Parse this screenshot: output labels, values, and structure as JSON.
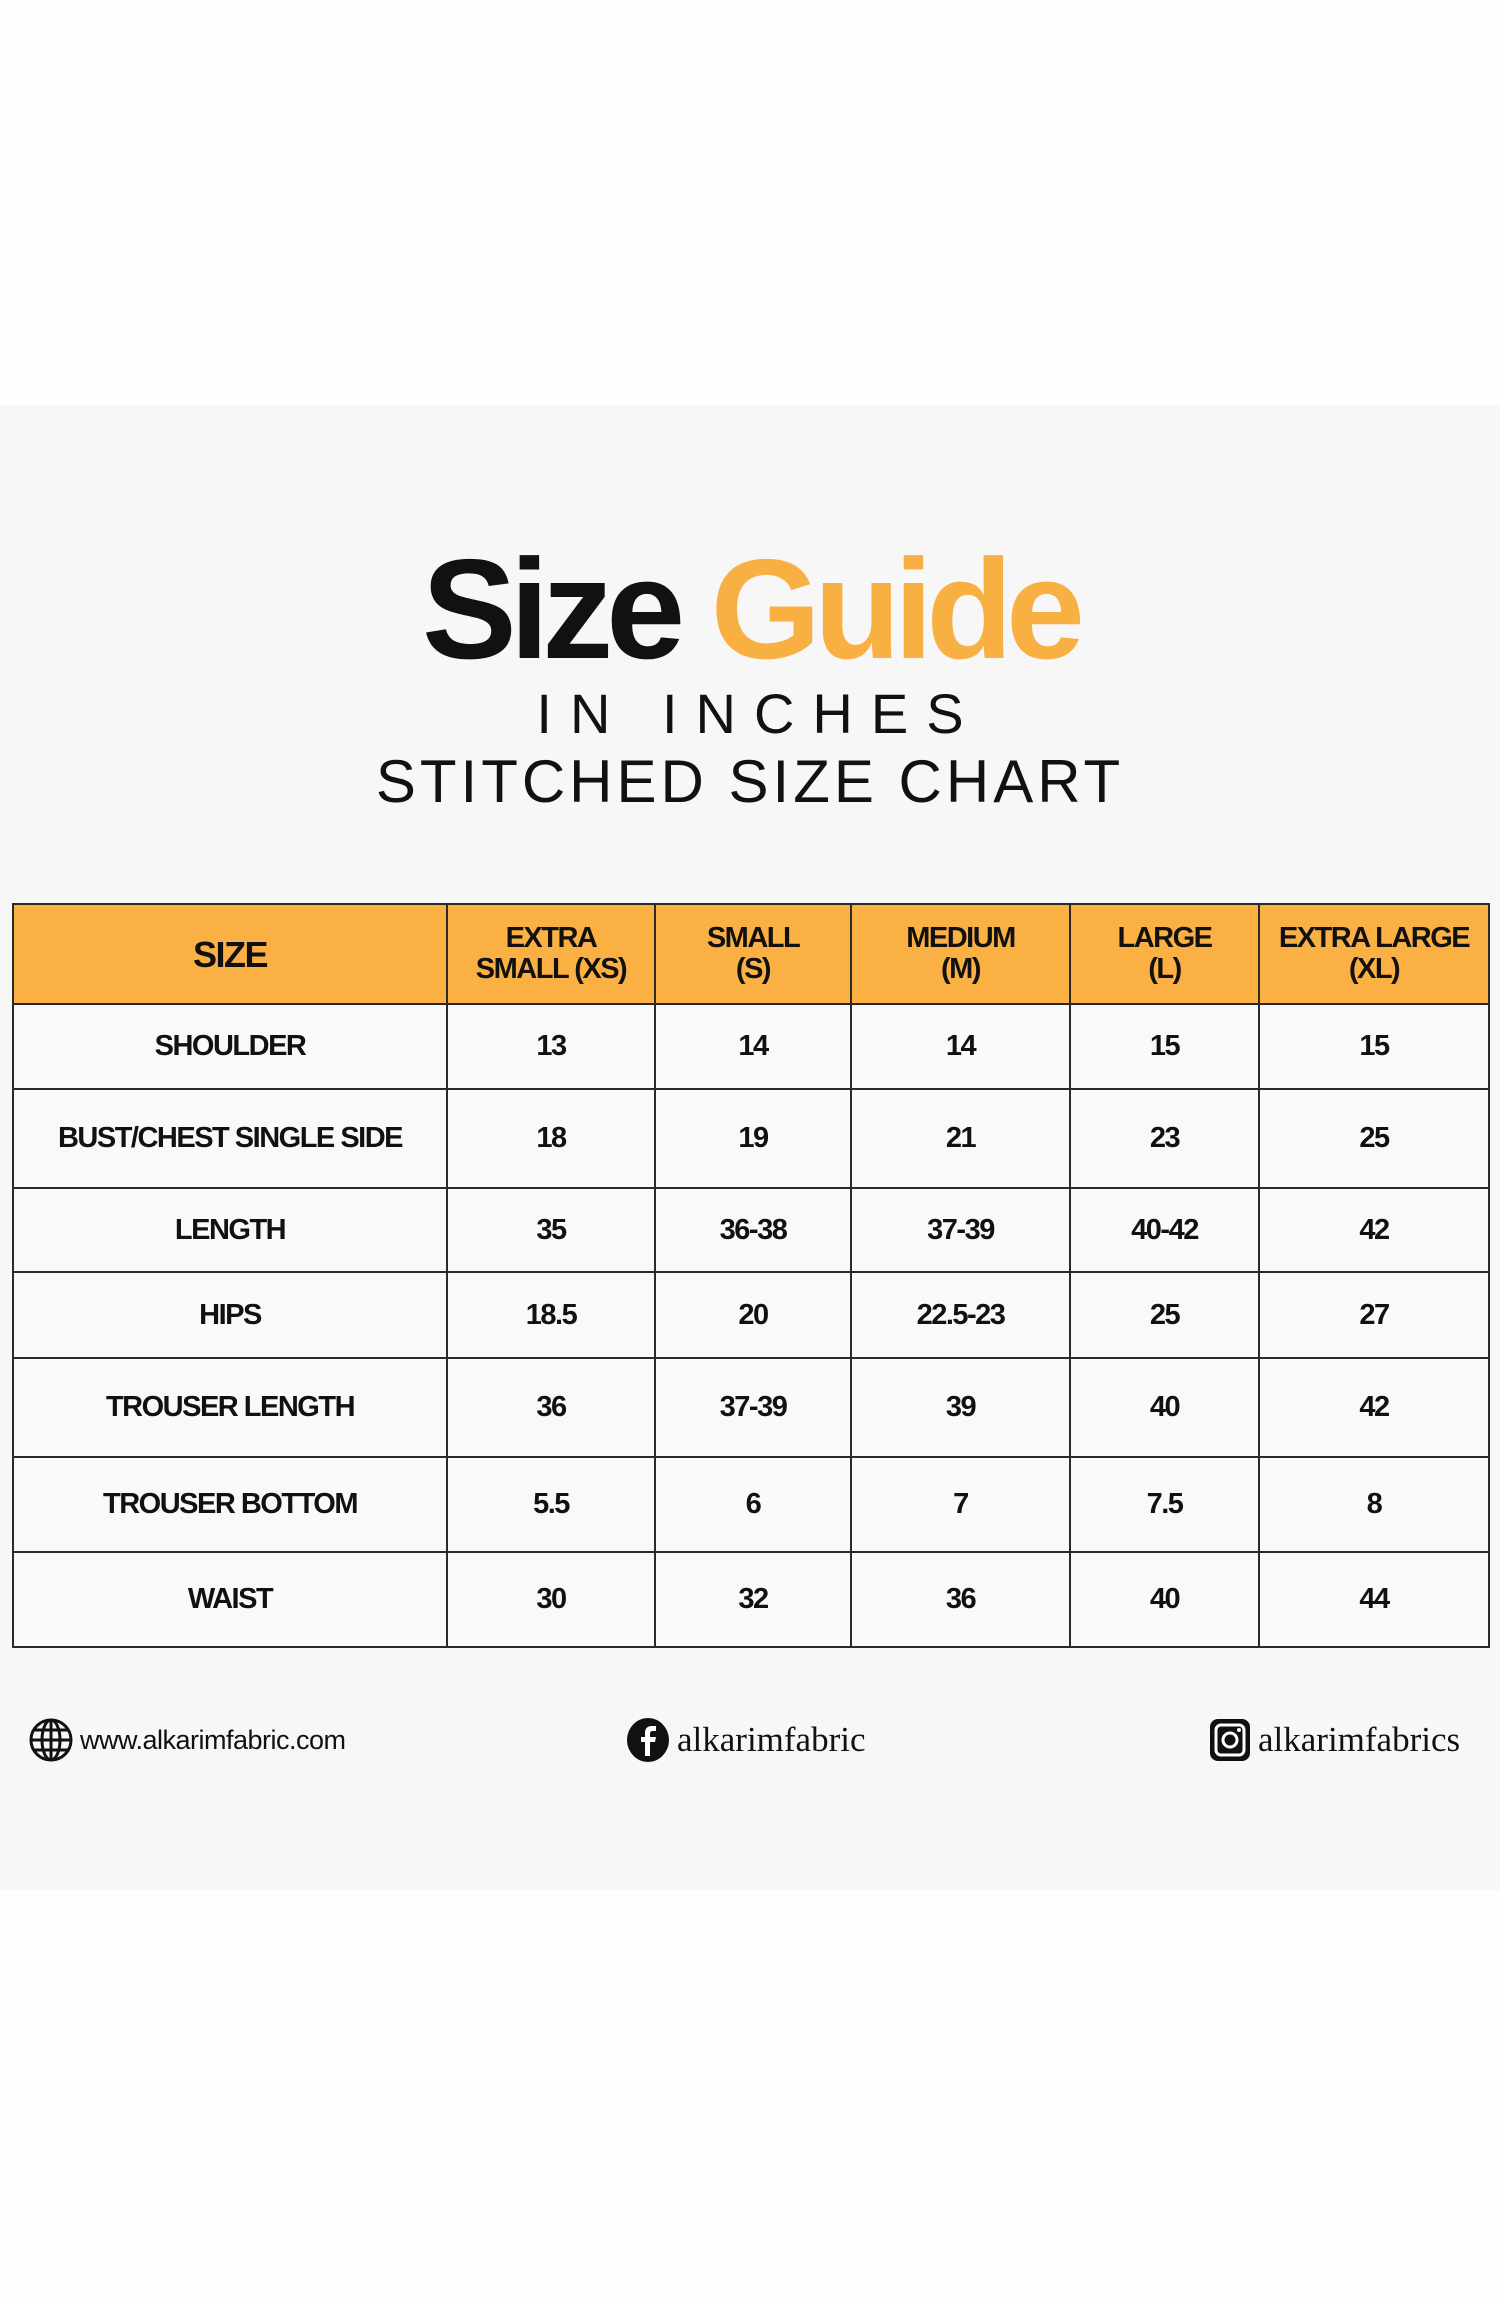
{
  "header": {
    "title_part1": "Size",
    "title_part2": "Guide",
    "subtitle": "IN INCHES",
    "chart_title": "STITCHED SIZE CHART"
  },
  "colors": {
    "accent": "#f9b043",
    "header_bg": "#fbb044",
    "panel_bg": "#f7f7f8"
  },
  "table": {
    "columns": [
      "SIZE",
      "EXTRA SMALL (XS)",
      "SMALL (S)",
      "MEDIUM (M)",
      "LARGE (L)",
      "EXTRA LARGE (XL)"
    ],
    "columns_lines": [
      [
        "SIZE",
        ""
      ],
      [
        "EXTRA",
        "SMALL (XS)"
      ],
      [
        "SMALL",
        "(S)"
      ],
      [
        "MEDIUM",
        "(M)"
      ],
      [
        "LARGE",
        "(L)"
      ],
      [
        "EXTRA LARGE",
        "(XL)"
      ]
    ],
    "rows": [
      [
        "SHOULDER",
        "13",
        "14",
        "14",
        "15",
        "15"
      ],
      [
        "BUST/CHEST SINGLE SIDE",
        "18",
        "19",
        "21",
        "23",
        "25"
      ],
      [
        "LENGTH",
        "35",
        "36-38",
        "37-39",
        "40-42",
        "42"
      ],
      [
        "HIPS",
        "18.5",
        "20",
        "22.5-23",
        "25",
        "27"
      ],
      [
        "TROUSER LENGTH",
        "36",
        "37-39",
        "39",
        "40",
        "42"
      ],
      [
        "TROUSER BOTTOM",
        "5.5",
        "6",
        "7",
        "7.5",
        "8"
      ],
      [
        "WAIST",
        "30",
        "32",
        "36",
        "40",
        "44"
      ]
    ]
  },
  "footer": {
    "website": {
      "icon": "globe-icon",
      "text": "www.alkarimfabric.com"
    },
    "facebook": {
      "icon": "facebook-icon",
      "text": "alkarimfabric"
    },
    "instagram": {
      "icon": "instagram-icon",
      "text": "alkarimfabrics"
    }
  }
}
